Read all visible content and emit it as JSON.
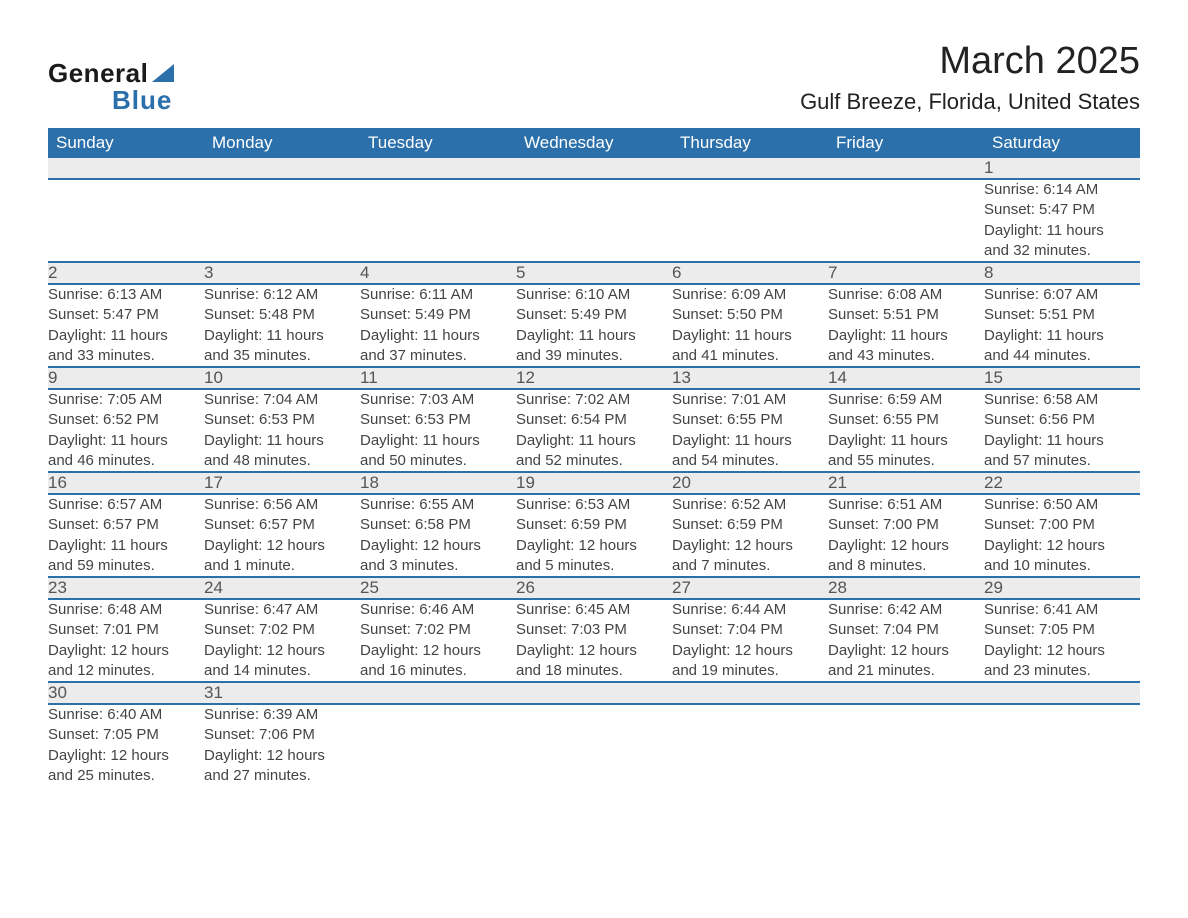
{
  "logo": {
    "word1": "General",
    "word2": "Blue"
  },
  "title": {
    "month": "March 2025",
    "location": "Gulf Breeze, Florida, United States"
  },
  "colors": {
    "header_bg": "#2b6fab",
    "header_text": "#ffffff",
    "daynum_bg": "#ececec",
    "daynum_text": "#555555",
    "detail_text": "#444444",
    "row_border": "#2b6fab",
    "page_bg": "#ffffff",
    "logo_accent": "#2b6fab"
  },
  "typography": {
    "title_fontsize": 38,
    "location_fontsize": 22,
    "header_fontsize": 17,
    "daynum_fontsize": 17,
    "detail_fontsize": 15,
    "font_family": "Arial"
  },
  "calendar": {
    "day_headers": [
      "Sunday",
      "Monday",
      "Tuesday",
      "Wednesday",
      "Thursday",
      "Friday",
      "Saturday"
    ],
    "weeks": [
      [
        null,
        null,
        null,
        null,
        null,
        null,
        {
          "n": "1",
          "sr": "Sunrise: 6:14 AM",
          "ss": "Sunset: 5:47 PM",
          "d1": "Daylight: 11 hours",
          "d2": "and 32 minutes."
        }
      ],
      [
        {
          "n": "2",
          "sr": "Sunrise: 6:13 AM",
          "ss": "Sunset: 5:47 PM",
          "d1": "Daylight: 11 hours",
          "d2": "and 33 minutes."
        },
        {
          "n": "3",
          "sr": "Sunrise: 6:12 AM",
          "ss": "Sunset: 5:48 PM",
          "d1": "Daylight: 11 hours",
          "d2": "and 35 minutes."
        },
        {
          "n": "4",
          "sr": "Sunrise: 6:11 AM",
          "ss": "Sunset: 5:49 PM",
          "d1": "Daylight: 11 hours",
          "d2": "and 37 minutes."
        },
        {
          "n": "5",
          "sr": "Sunrise: 6:10 AM",
          "ss": "Sunset: 5:49 PM",
          "d1": "Daylight: 11 hours",
          "d2": "and 39 minutes."
        },
        {
          "n": "6",
          "sr": "Sunrise: 6:09 AM",
          "ss": "Sunset: 5:50 PM",
          "d1": "Daylight: 11 hours",
          "d2": "and 41 minutes."
        },
        {
          "n": "7",
          "sr": "Sunrise: 6:08 AM",
          "ss": "Sunset: 5:51 PM",
          "d1": "Daylight: 11 hours",
          "d2": "and 43 minutes."
        },
        {
          "n": "8",
          "sr": "Sunrise: 6:07 AM",
          "ss": "Sunset: 5:51 PM",
          "d1": "Daylight: 11 hours",
          "d2": "and 44 minutes."
        }
      ],
      [
        {
          "n": "9",
          "sr": "Sunrise: 7:05 AM",
          "ss": "Sunset: 6:52 PM",
          "d1": "Daylight: 11 hours",
          "d2": "and 46 minutes."
        },
        {
          "n": "10",
          "sr": "Sunrise: 7:04 AM",
          "ss": "Sunset: 6:53 PM",
          "d1": "Daylight: 11 hours",
          "d2": "and 48 minutes."
        },
        {
          "n": "11",
          "sr": "Sunrise: 7:03 AM",
          "ss": "Sunset: 6:53 PM",
          "d1": "Daylight: 11 hours",
          "d2": "and 50 minutes."
        },
        {
          "n": "12",
          "sr": "Sunrise: 7:02 AM",
          "ss": "Sunset: 6:54 PM",
          "d1": "Daylight: 11 hours",
          "d2": "and 52 minutes."
        },
        {
          "n": "13",
          "sr": "Sunrise: 7:01 AM",
          "ss": "Sunset: 6:55 PM",
          "d1": "Daylight: 11 hours",
          "d2": "and 54 minutes."
        },
        {
          "n": "14",
          "sr": "Sunrise: 6:59 AM",
          "ss": "Sunset: 6:55 PM",
          "d1": "Daylight: 11 hours",
          "d2": "and 55 minutes."
        },
        {
          "n": "15",
          "sr": "Sunrise: 6:58 AM",
          "ss": "Sunset: 6:56 PM",
          "d1": "Daylight: 11 hours",
          "d2": "and 57 minutes."
        }
      ],
      [
        {
          "n": "16",
          "sr": "Sunrise: 6:57 AM",
          "ss": "Sunset: 6:57 PM",
          "d1": "Daylight: 11 hours",
          "d2": "and 59 minutes."
        },
        {
          "n": "17",
          "sr": "Sunrise: 6:56 AM",
          "ss": "Sunset: 6:57 PM",
          "d1": "Daylight: 12 hours",
          "d2": "and 1 minute."
        },
        {
          "n": "18",
          "sr": "Sunrise: 6:55 AM",
          "ss": "Sunset: 6:58 PM",
          "d1": "Daylight: 12 hours",
          "d2": "and 3 minutes."
        },
        {
          "n": "19",
          "sr": "Sunrise: 6:53 AM",
          "ss": "Sunset: 6:59 PM",
          "d1": "Daylight: 12 hours",
          "d2": "and 5 minutes."
        },
        {
          "n": "20",
          "sr": "Sunrise: 6:52 AM",
          "ss": "Sunset: 6:59 PM",
          "d1": "Daylight: 12 hours",
          "d2": "and 7 minutes."
        },
        {
          "n": "21",
          "sr": "Sunrise: 6:51 AM",
          "ss": "Sunset: 7:00 PM",
          "d1": "Daylight: 12 hours",
          "d2": "and 8 minutes."
        },
        {
          "n": "22",
          "sr": "Sunrise: 6:50 AM",
          "ss": "Sunset: 7:00 PM",
          "d1": "Daylight: 12 hours",
          "d2": "and 10 minutes."
        }
      ],
      [
        {
          "n": "23",
          "sr": "Sunrise: 6:48 AM",
          "ss": "Sunset: 7:01 PM",
          "d1": "Daylight: 12 hours",
          "d2": "and 12 minutes."
        },
        {
          "n": "24",
          "sr": "Sunrise: 6:47 AM",
          "ss": "Sunset: 7:02 PM",
          "d1": "Daylight: 12 hours",
          "d2": "and 14 minutes."
        },
        {
          "n": "25",
          "sr": "Sunrise: 6:46 AM",
          "ss": "Sunset: 7:02 PM",
          "d1": "Daylight: 12 hours",
          "d2": "and 16 minutes."
        },
        {
          "n": "26",
          "sr": "Sunrise: 6:45 AM",
          "ss": "Sunset: 7:03 PM",
          "d1": "Daylight: 12 hours",
          "d2": "and 18 minutes."
        },
        {
          "n": "27",
          "sr": "Sunrise: 6:44 AM",
          "ss": "Sunset: 7:04 PM",
          "d1": "Daylight: 12 hours",
          "d2": "and 19 minutes."
        },
        {
          "n": "28",
          "sr": "Sunrise: 6:42 AM",
          "ss": "Sunset: 7:04 PM",
          "d1": "Daylight: 12 hours",
          "d2": "and 21 minutes."
        },
        {
          "n": "29",
          "sr": "Sunrise: 6:41 AM",
          "ss": "Sunset: 7:05 PM",
          "d1": "Daylight: 12 hours",
          "d2": "and 23 minutes."
        }
      ],
      [
        {
          "n": "30",
          "sr": "Sunrise: 6:40 AM",
          "ss": "Sunset: 7:05 PM",
          "d1": "Daylight: 12 hours",
          "d2": "and 25 minutes."
        },
        {
          "n": "31",
          "sr": "Sunrise: 6:39 AM",
          "ss": "Sunset: 7:06 PM",
          "d1": "Daylight: 12 hours",
          "d2": "and 27 minutes."
        },
        null,
        null,
        null,
        null,
        null
      ]
    ]
  }
}
